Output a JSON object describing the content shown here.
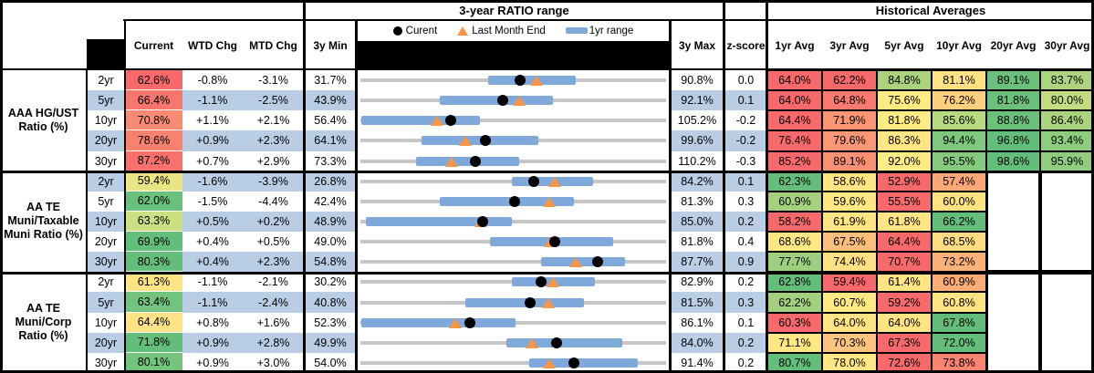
{
  "header": {
    "range_title": "3-year RATIO range",
    "hist_title": "Historical Averages",
    "cols": {
      "current": "Current",
      "wtd": "WTD Chg",
      "mtd": "MTD Chg",
      "min": "3y Min",
      "max": "3y Max",
      "z": "z-score"
    },
    "avg_cols": [
      "1yr Avg",
      "3yr Avg",
      "5yr Avg",
      "10yr Avg",
      "20yr Avg",
      "30yr Avg"
    ],
    "legend": {
      "current": "Curent",
      "last_month": "Last Month End",
      "range": "1yr range"
    }
  },
  "colors": {
    "stripe_blue": "#B9CDE5",
    "bar_blue": "#80A9DB",
    "track_gray": "#C6C6C6",
    "dot_black": "#000000",
    "triangle_orange": "#F79646",
    "heat_red": "#F8696B",
    "heat_yellow": "#FFEB84",
    "heat_green": "#63BE7B"
  },
  "chart_data": {
    "type": "table",
    "description": "Municipal bond ratio monitor. Each row: current ratio, weekly/monthly change, 3-year min/max with inline dot-range plot (gray line = 3y range, blue bar = 1yr range, black dot = current, orange triangle = last month end), z-score, and historical averages with red-yellow-green heat shading.",
    "groups": [
      {
        "label": "AAA HG/UST Ratio (%)",
        "rows": [
          {
            "tenor": "2yr",
            "current": "62.6%",
            "cur_bg": "#F8696B",
            "wtd": "-0.8%",
            "mtd": "-3.1%",
            "min": "31.7%",
            "max": "90.8%",
            "z": "0.0",
            "chart": {
              "min": 31.7,
              "max": 90.8,
              "cur": 62.6,
              "lme": 65.7,
              "lo": 56.4,
              "hi": 73.4
            },
            "avgs": [
              {
                "v": "64.0%",
                "bg": "#F8696B"
              },
              {
                "v": "62.2%",
                "bg": "#F8696B"
              },
              {
                "v": "84.8%",
                "bg": "#AAD27F"
              },
              {
                "v": "81.1%",
                "bg": "#FFE283"
              },
              {
                "v": "89.1%",
                "bg": "#6BC17C"
              },
              {
                "v": "83.7%",
                "bg": "#AFD47F"
              }
            ]
          },
          {
            "tenor": "5yr",
            "current": "66.4%",
            "cur_bg": "#F8766E",
            "wtd": "-1.1%",
            "mtd": "-2.5%",
            "min": "43.9%",
            "max": "92.1%",
            "z": "0.1",
            "chart": {
              "min": 43.9,
              "max": 92.1,
              "cur": 66.4,
              "lme": 68.9,
              "lo": 56.4,
              "hi": 74.3
            },
            "avgs": [
              {
                "v": "64.0%",
                "bg": "#F8696B"
              },
              {
                "v": "64.8%",
                "bg": "#F97B6F"
              },
              {
                "v": "75.6%",
                "bg": "#FFEB84"
              },
              {
                "v": "76.2%",
                "bg": "#FDD07F"
              },
              {
                "v": "81.8%",
                "bg": "#6BC17C"
              },
              {
                "v": "80.0%",
                "bg": "#C4DC81"
              }
            ]
          },
          {
            "tenor": "10yr",
            "current": "70.8%",
            "cur_bg": "#F98B72",
            "wtd": "+1.1%",
            "mtd": "+2.1%",
            "min": "56.4%",
            "max": "105.2%",
            "z": "-0.2",
            "chart": {
              "min": 56.4,
              "max": 105.2,
              "cur": 70.8,
              "lme": 68.7,
              "lo": 56.5,
              "hi": 75.5
            },
            "avgs": [
              {
                "v": "64.4%",
                "bg": "#F8696B"
              },
              {
                "v": "71.9%",
                "bg": "#FA9473"
              },
              {
                "v": "81.8%",
                "bg": "#FFEB84"
              },
              {
                "v": "85.6%",
                "bg": "#B9D980"
              },
              {
                "v": "88.8%",
                "bg": "#6BC17C"
              },
              {
                "v": "86.4%",
                "bg": "#ABD37F"
              }
            ]
          },
          {
            "tenor": "20yr",
            "current": "78.6%",
            "cur_bg": "#F8826F",
            "wtd": "+0.9%",
            "mtd": "+2.3%",
            "min": "64.1%",
            "max": "99.6%",
            "z": "-0.2",
            "chart": {
              "min": 64.1,
              "max": 99.6,
              "cur": 78.6,
              "lme": 76.3,
              "lo": 71.2,
              "hi": 84.8
            },
            "avgs": [
              {
                "v": "76.4%",
                "bg": "#F8696B"
              },
              {
                "v": "79.6%",
                "bg": "#FA9875"
              },
              {
                "v": "86.3%",
                "bg": "#FFE583"
              },
              {
                "v": "94.4%",
                "bg": "#7FC87D"
              },
              {
                "v": "96.8%",
                "bg": "#63BE7B"
              },
              {
                "v": "93.4%",
                "bg": "#8ECC7E"
              }
            ]
          },
          {
            "tenor": "30yr",
            "current": "87.2%",
            "cur_bg": "#F8716D",
            "wtd": "+0.7%",
            "mtd": "+2.9%",
            "min": "73.3%",
            "max": "110.2%",
            "z": "-0.3",
            "chart": {
              "min": 73.3,
              "max": 110.2,
              "cur": 87.2,
              "lme": 84.3,
              "lo": 80.0,
              "hi": 92.5
            },
            "avgs": [
              {
                "v": "85.2%",
                "bg": "#F8696B"
              },
              {
                "v": "89.1%",
                "bg": "#FA9172"
              },
              {
                "v": "92.0%",
                "bg": "#FFEB84"
              },
              {
                "v": "95.5%",
                "bg": "#86CA7E"
              },
              {
                "v": "98.6%",
                "bg": "#63BE7B"
              },
              {
                "v": "95.9%",
                "bg": "#90CD7E"
              }
            ]
          }
        ]
      },
      {
        "label": "AA TE Muni/Taxable Muni Ratio (%)",
        "rows": [
          {
            "tenor": "2yr",
            "current": "59.4%",
            "cur_bg": "#E9E583",
            "wtd": "-1.6%",
            "mtd": "-3.9%",
            "min": "26.8%",
            "max": "84.2%",
            "z": "0.1",
            "chart": {
              "min": 26.8,
              "max": 84.2,
              "cur": 59.4,
              "lme": 63.3,
              "lo": 55.2,
              "hi": 70.5
            },
            "avgs": [
              {
                "v": "62.3%",
                "bg": "#63BE7B"
              },
              {
                "v": "58.6%",
                "bg": "#FFE483"
              },
              {
                "v": "52.9%",
                "bg": "#F8696B"
              },
              {
                "v": "57.4%",
                "bg": "#FCA977"
              }
            ]
          },
          {
            "tenor": "5yr",
            "current": "62.0%",
            "cur_bg": "#68C07C",
            "wtd": "-1.5%",
            "mtd": "-4.4%",
            "min": "42.4%",
            "max": "81.3%",
            "z": "0.3",
            "chart": {
              "min": 42.4,
              "max": 81.3,
              "cur": 62.0,
              "lme": 66.4,
              "lo": 52.5,
              "hi": 69.6
            },
            "avgs": [
              {
                "v": "60.9%",
                "bg": "#A5D17E"
              },
              {
                "v": "59.6%",
                "bg": "#FFE884"
              },
              {
                "v": "55.5%",
                "bg": "#F8696B"
              },
              {
                "v": "60.0%",
                "bg": "#FFE383"
              }
            ]
          },
          {
            "tenor": "10yr",
            "current": "63.3%",
            "cur_bg": "#CCDF81",
            "wtd": "+0.5%",
            "mtd": "+0.2%",
            "min": "48.9%",
            "max": "85.0%",
            "z": "0.2",
            "chart": {
              "min": 48.9,
              "max": 85.0,
              "cur": 63.3,
              "lme": 63.1,
              "lo": 49.5,
              "hi": 66.8
            },
            "avgs": [
              {
                "v": "58.2%",
                "bg": "#F8696B"
              },
              {
                "v": "61.9%",
                "bg": "#FFE684"
              },
              {
                "v": "61.8%",
                "bg": "#FFE584"
              },
              {
                "v": "66.2%",
                "bg": "#63BE7B"
              }
            ]
          },
          {
            "tenor": "20yr",
            "current": "69.9%",
            "cur_bg": "#63BE7B",
            "wtd": "+0.4%",
            "mtd": "+0.5%",
            "min": "49.0%",
            "max": "81.8%",
            "z": "0.4",
            "chart": {
              "min": 49.0,
              "max": 81.8,
              "cur": 69.9,
              "lme": 69.4,
              "lo": 62.9,
              "hi": 76.1
            },
            "avgs": [
              {
                "v": "68.6%",
                "bg": "#FFE884"
              },
              {
                "v": "67.5%",
                "bg": "#FCBE7B"
              },
              {
                "v": "64.4%",
                "bg": "#F8696B"
              },
              {
                "v": "68.5%",
                "bg": "#FEDC81"
              }
            ]
          },
          {
            "tenor": "30yr",
            "current": "80.3%",
            "cur_bg": "#63BE7B",
            "wtd": "+0.4%",
            "mtd": "+2.3%",
            "min": "54.8%",
            "max": "87.7%",
            "z": "0.9",
            "chart": {
              "min": 54.8,
              "max": 87.7,
              "cur": 80.3,
              "lme": 78.0,
              "lo": 74.2,
              "hi": 83.3
            },
            "avgs": [
              {
                "v": "77.7%",
                "bg": "#9ECF7E"
              },
              {
                "v": "74.4%",
                "bg": "#FFE183"
              },
              {
                "v": "70.7%",
                "bg": "#F8696B"
              },
              {
                "v": "73.2%",
                "bg": "#FBB278"
              }
            ]
          }
        ]
      },
      {
        "label": "AA TE Muni/Corp Ratio (%)",
        "rows": [
          {
            "tenor": "2yr",
            "current": "61.3%",
            "cur_bg": "#FFE483",
            "wtd": "-1.1%",
            "mtd": "-2.1%",
            "min": "30.2%",
            "max": "82.9%",
            "z": "0.2",
            "chart": {
              "min": 30.2,
              "max": 82.9,
              "cur": 61.3,
              "lme": 63.4,
              "lo": 56.3,
              "hi": 70.6
            },
            "avgs": [
              {
                "v": "62.8%",
                "bg": "#63BE7B"
              },
              {
                "v": "59.4%",
                "bg": "#F8696B"
              },
              {
                "v": "61.4%",
                "bg": "#FFE584"
              },
              {
                "v": "60.9%",
                "bg": "#FBAC77"
              }
            ]
          },
          {
            "tenor": "5yr",
            "current": "63.4%",
            "cur_bg": "#71C37D",
            "wtd": "-1.1%",
            "mtd": "-2.4%",
            "min": "40.8%",
            "max": "81.5%",
            "z": "0.3",
            "chart": {
              "min": 40.8,
              "max": 81.5,
              "cur": 63.4,
              "lme": 65.8,
              "lo": 54.8,
              "hi": 70.6
            },
            "avgs": [
              {
                "v": "62.2%",
                "bg": "#A2D07E"
              },
              {
                "v": "60.7%",
                "bg": "#FFE984"
              },
              {
                "v": "59.2%",
                "bg": "#F8696B"
              },
              {
                "v": "60.8%",
                "bg": "#FFE483"
              }
            ]
          },
          {
            "tenor": "10yr",
            "current": "64.4%",
            "cur_bg": "#FFE384",
            "wtd": "+0.8%",
            "mtd": "+1.6%",
            "min": "52.3%",
            "max": "86.1%",
            "z": "0.1",
            "chart": {
              "min": 52.3,
              "max": 86.1,
              "cur": 64.4,
              "lme": 62.8,
              "lo": 52.4,
              "hi": 69.5
            },
            "avgs": [
              {
                "v": "60.3%",
                "bg": "#F8696B"
              },
              {
                "v": "64.0%",
                "bg": "#FFE484"
              },
              {
                "v": "64.0%",
                "bg": "#FFE484"
              },
              {
                "v": "67.8%",
                "bg": "#63BE7B"
              }
            ]
          },
          {
            "tenor": "20yr",
            "current": "71.8%",
            "cur_bg": "#63BE7B",
            "wtd": "+0.9%",
            "mtd": "+2.8%",
            "min": "49.9%",
            "max": "84.0%",
            "z": "0.2",
            "chart": {
              "min": 49.9,
              "max": 84.0,
              "cur": 71.8,
              "lme": 69.0,
              "lo": 66.2,
              "hi": 79.1
            },
            "avgs": [
              {
                "v": "71.1%",
                "bg": "#FFE884"
              },
              {
                "v": "70.3%",
                "bg": "#FCC47E"
              },
              {
                "v": "67.3%",
                "bg": "#F8696B"
              },
              {
                "v": "72.0%",
                "bg": "#63BE7B"
              }
            ]
          },
          {
            "tenor": "30yr",
            "current": "80.1%",
            "cur_bg": "#74C47D",
            "wtd": "+0.9%",
            "mtd": "+3.0%",
            "min": "54.0%",
            "max": "91.4%",
            "z": "0.2",
            "chart": {
              "min": 54.0,
              "max": 91.4,
              "cur": 80.1,
              "lme": 77.1,
              "lo": 74.6,
              "hi": 87.9
            },
            "avgs": [
              {
                "v": "80.7%",
                "bg": "#63BE7B"
              },
              {
                "v": "78.0%",
                "bg": "#FFE884"
              },
              {
                "v": "72.6%",
                "bg": "#F8696B"
              },
              {
                "v": "73.8%",
                "bg": "#F9846F"
              }
            ]
          }
        ]
      }
    ]
  }
}
